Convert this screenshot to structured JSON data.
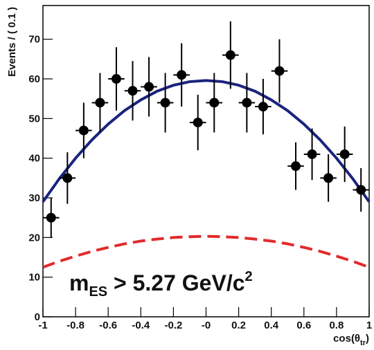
{
  "chart_data": {
    "type": "scatter",
    "y_label": "Events / ( 0.1 )",
    "x_label": {
      "main": "cos(θ",
      "sub": "tr",
      "end": ")"
    },
    "annotation": {
      "m": "m",
      "sub": "ES",
      "text": " > 5.27 GeV/c",
      "sup": "2"
    },
    "xlim": [
      -1,
      1
    ],
    "ylim": [
      0,
      78.5
    ],
    "xticks": [
      -1,
      -0.8,
      -0.6,
      -0.4,
      -0.2,
      {
        "value": 0,
        "label": "-0"
      },
      0.2,
      0.4,
      0.6,
      0.8,
      1
    ],
    "yticks": [
      0,
      10,
      20,
      30,
      40,
      50,
      60,
      70
    ],
    "series": [
      {
        "type": "errorbar",
        "color": "#000000",
        "xerr": 0.05,
        "x": [
          -0.95,
          -0.85,
          -0.75,
          -0.65,
          -0.55,
          -0.45,
          -0.35,
          -0.25,
          -0.15,
          -0.05,
          0.05,
          0.15,
          0.25,
          0.35,
          0.45,
          0.55,
          0.65,
          0.75,
          0.85,
          0.95
        ],
        "values": [
          25,
          35,
          47,
          54,
          60,
          57,
          58,
          54,
          61,
          49,
          54,
          66,
          54,
          53,
          62,
          38,
          41,
          35,
          41,
          32
        ],
        "errors": [
          5,
          6.5,
          7,
          7.5,
          8,
          7.5,
          7.5,
          7.5,
          8,
          7,
          7.5,
          8.5,
          7.5,
          7,
          8,
          6,
          6.5,
          6,
          7,
          5.5
        ]
      },
      {
        "type": "line",
        "color": "#1a237e",
        "dashed": false,
        "x": [
          -1,
          -0.9,
          -0.8,
          -0.7,
          -0.6,
          -0.5,
          -0.4,
          -0.3,
          -0.2,
          -0.1,
          0,
          0.1,
          0.2,
          0.3,
          0.4,
          0.5,
          0.6,
          0.7,
          0.8,
          0.9,
          1
        ],
        "values": [
          29.0,
          34.8,
          40.0,
          44.6,
          48.6,
          52.0,
          54.7,
          56.9,
          58.4,
          59.3,
          59.6,
          59.3,
          58.4,
          56.9,
          54.7,
          52.0,
          48.6,
          44.6,
          40.0,
          34.8,
          29.0
        ]
      },
      {
        "type": "line",
        "color": "#e32a2a",
        "dashed": true,
        "x": [
          -1,
          -0.9,
          -0.8,
          -0.7,
          -0.6,
          -0.5,
          -0.4,
          -0.3,
          -0.2,
          -0.1,
          0,
          0.1,
          0.2,
          0.3,
          0.4,
          0.5,
          0.6,
          0.7,
          0.8,
          0.9,
          1
        ],
        "values": [
          12.5,
          14.0,
          15.3,
          16.5,
          17.5,
          18.4,
          19.1,
          19.6,
          20.0,
          20.2,
          20.3,
          20.2,
          20.0,
          19.6,
          19.1,
          18.4,
          17.5,
          16.5,
          15.3,
          14.0,
          12.5
        ]
      }
    ]
  }
}
